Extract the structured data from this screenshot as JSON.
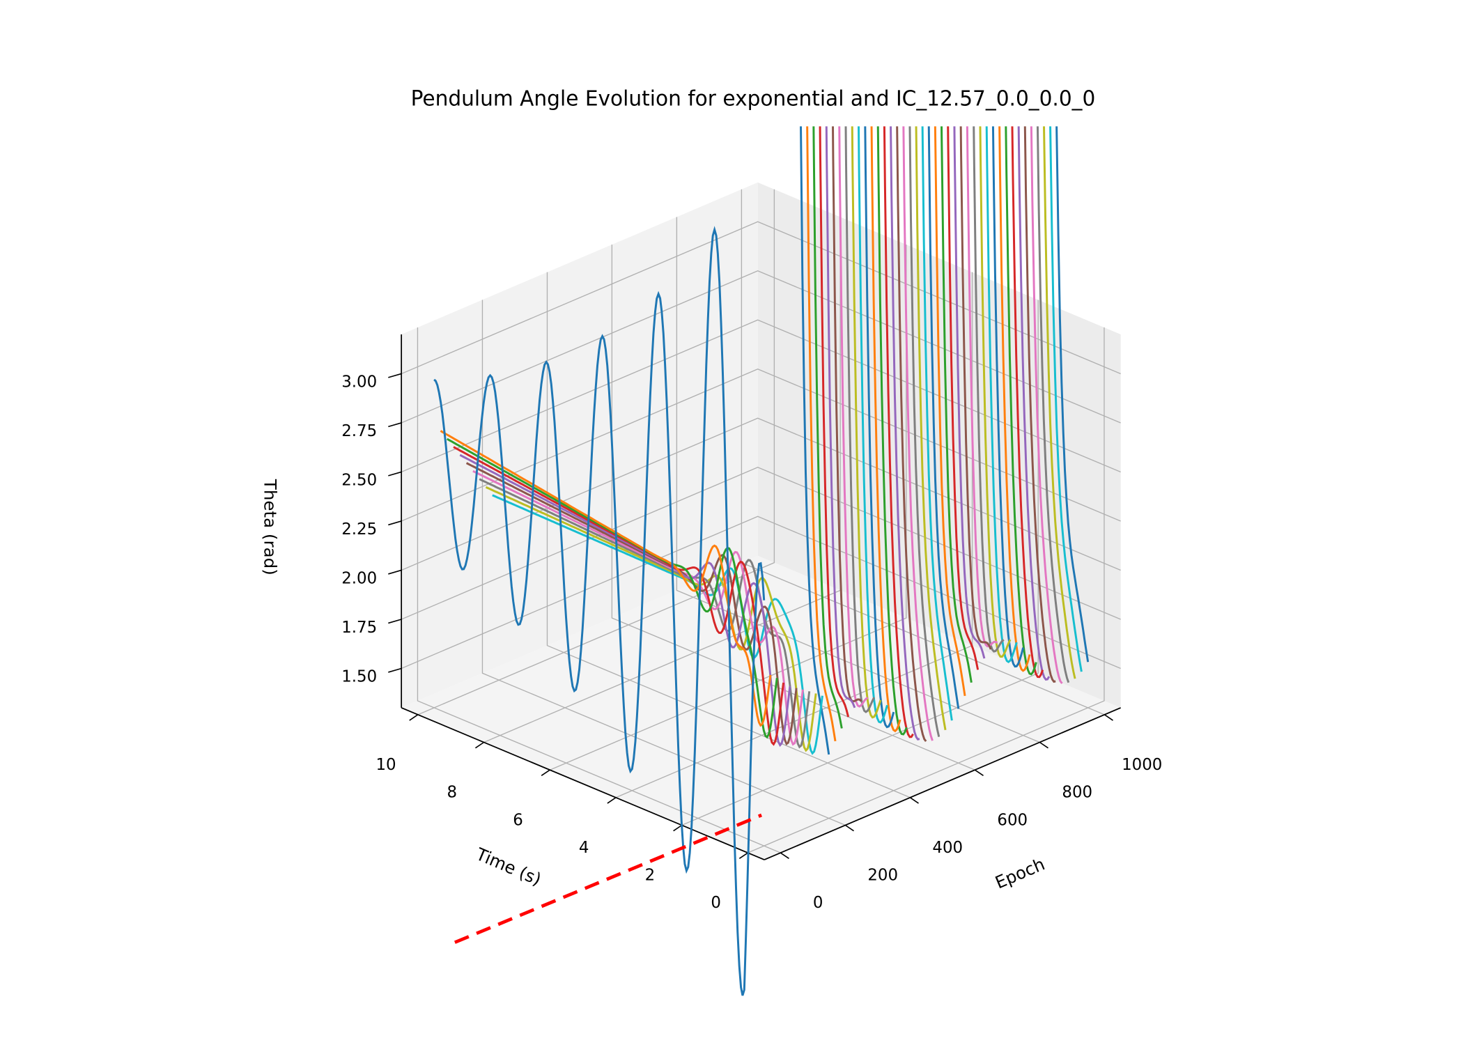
{
  "chart_data": {
    "type": "line",
    "projection": "3d",
    "title": "Pendulum Angle Evolution for exponential and IC_12.57_0.0_0.0_0",
    "xlabel": "Time (s)",
    "ylabel": "Epoch",
    "zlabel": "Theta (rad)",
    "xlim": [
      -0.5,
      10.5
    ],
    "ylim": [
      -50,
      1050
    ],
    "zlim": [
      1.3,
      3.2
    ],
    "xticks": [
      "0",
      "2",
      "4",
      "6",
      "8",
      "10"
    ],
    "yticks": [
      "0",
      "200",
      "400",
      "600",
      "800",
      "1000"
    ],
    "zticks": [
      "1.50",
      "1.75",
      "2.00",
      "2.25",
      "2.50",
      "2.75",
      "3.00"
    ],
    "grid": true,
    "epochs_start": 0,
    "epochs_step": 20,
    "epochs_count": 51,
    "time_range": [
      0,
      10
    ],
    "series_note": "one theta(t) curve per epoch; later epochs diverge above the axis top",
    "reference_line": {
      "style": "dashed",
      "color": "#ff0000"
    },
    "colors": [
      "#1f77b4",
      "#ff7f0e",
      "#2ca02c",
      "#d62728",
      "#9467bd",
      "#8c564b",
      "#e377c2",
      "#7f7f7f",
      "#bcbd22",
      "#17becf"
    ]
  }
}
